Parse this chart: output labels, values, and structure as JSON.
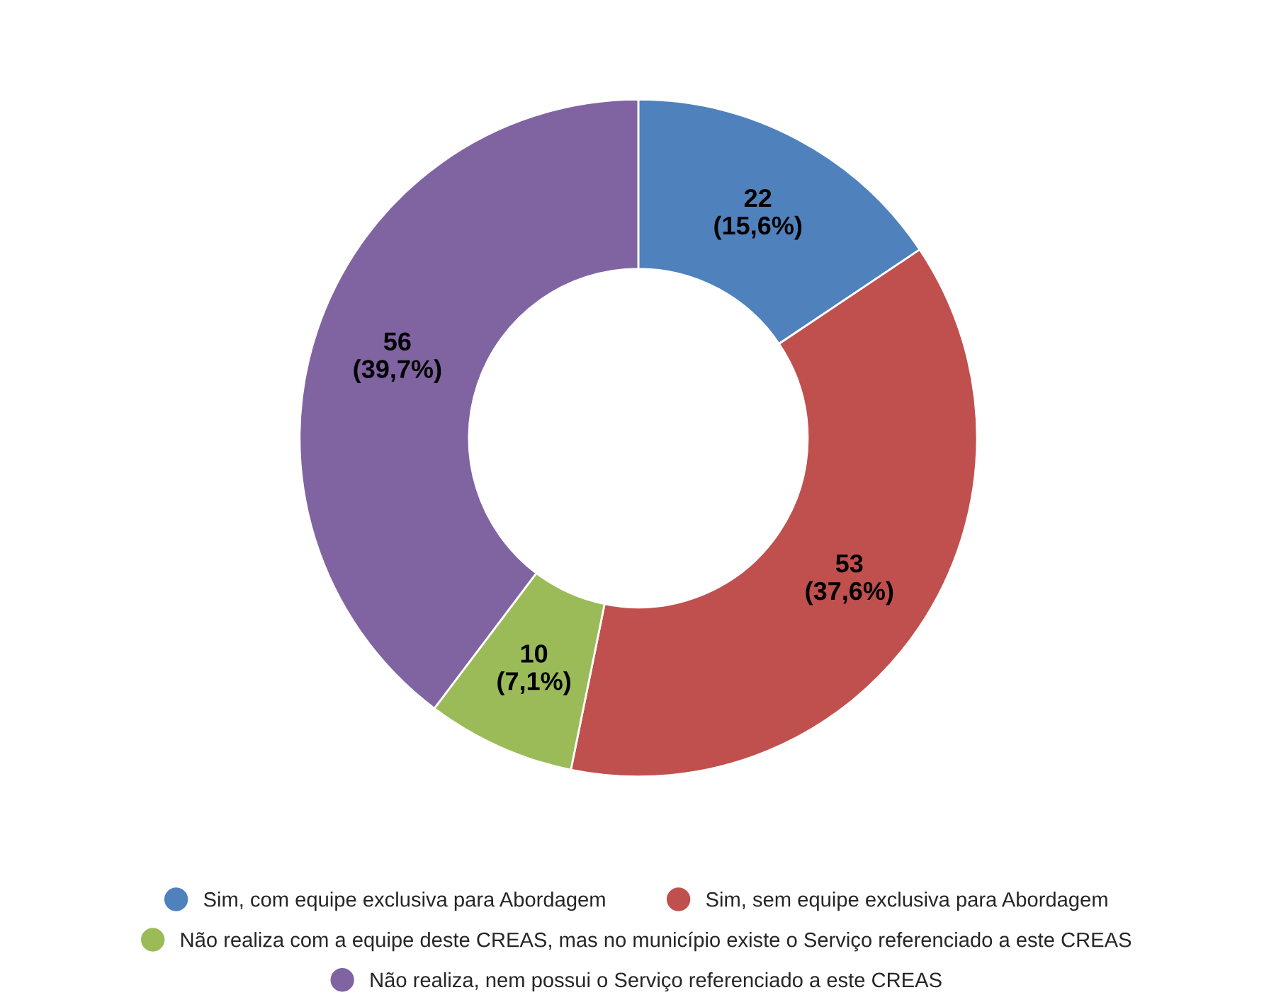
{
  "chart_data": {
    "type": "donut",
    "categories": [
      "Sim, com equipe exclusiva para Abordagem",
      "Sim, sem equipe exclusiva para Abordagem",
      "Não realiza com a equipe deste CREAS, mas no município existe o Serviço referenciado a este CREAS",
      "Não realiza, nem possui o Serviço referenciado a este CREAS"
    ],
    "values": [
      22,
      53,
      10,
      56
    ],
    "value_labels": [
      "22\n(15,6%)",
      "53\n(37,6%)",
      "10\n(7,1%)",
      "56\n(39,7%)"
    ],
    "colors": [
      "#4f81bd",
      "#c0504d",
      "#9bbb59",
      "#8064a2"
    ],
    "legend": "bottom"
  }
}
